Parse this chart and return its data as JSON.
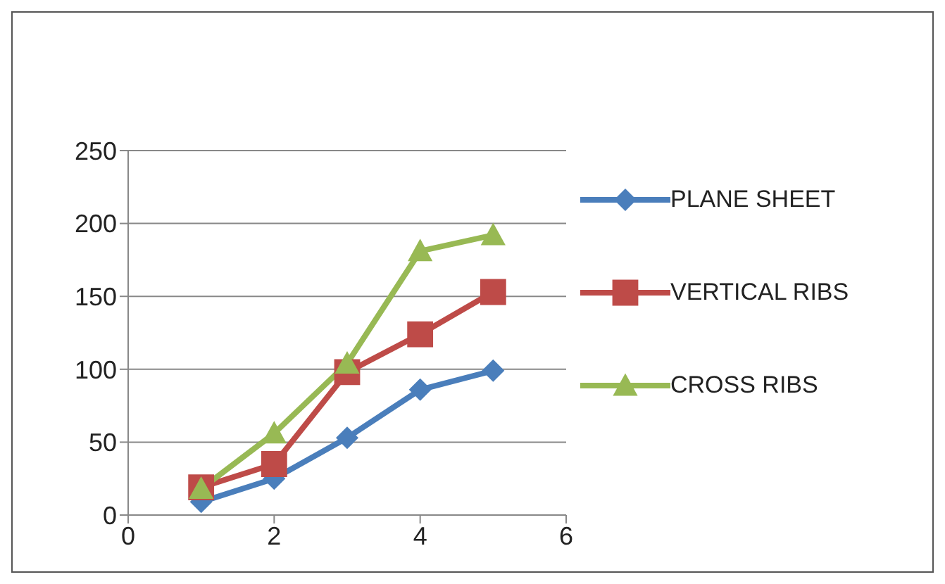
{
  "chart_data": {
    "type": "line",
    "x": [
      1,
      2,
      3,
      4,
      5
    ],
    "series": [
      {
        "name": "PLANE SHEET",
        "color": "#4a7ebb",
        "marker": "diamond",
        "values": [
          9,
          25,
          53,
          86,
          99
        ]
      },
      {
        "name": "VERTICAL RIBS",
        "color": "#be4b48",
        "marker": "square",
        "values": [
          19,
          35,
          98,
          124,
          153
        ]
      },
      {
        "name": "CROSS RIBS",
        "color": "#98b954",
        "marker": "triangle",
        "values": [
          18,
          56,
          104,
          181,
          192
        ]
      }
    ],
    "xlim": [
      0,
      6
    ],
    "xticks": [
      0,
      2,
      4,
      6
    ],
    "ylim": [
      0,
      250
    ],
    "yticks": [
      0,
      50,
      100,
      150,
      200,
      250
    ],
    "grid": "y",
    "legend": "right",
    "line_style": "solid"
  }
}
